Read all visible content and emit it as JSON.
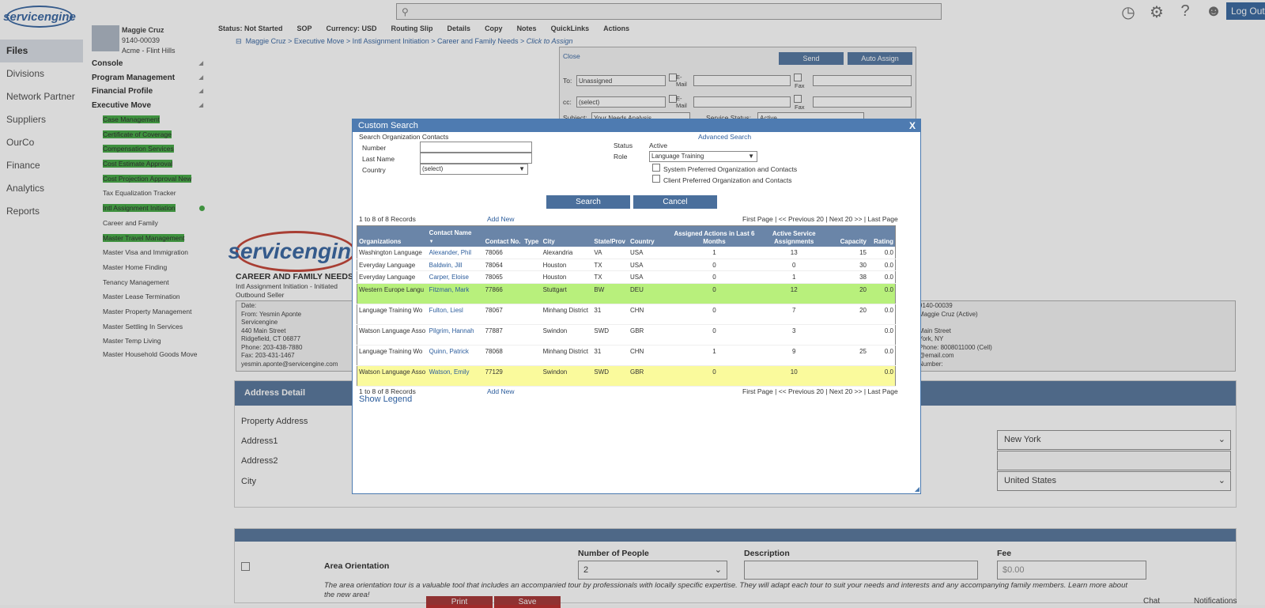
{
  "top": {
    "logo": "servicengine",
    "logout": "Log Out",
    "icons": [
      "history-icon",
      "gear-icon",
      "help-icon",
      "user-group-icon"
    ]
  },
  "left_nav": [
    "Files",
    "Divisions",
    "Network Partner",
    "Suppliers",
    "OurCo",
    "Finance",
    "Analytics",
    "Reports"
  ],
  "profile": {
    "name": "Maggie Cruz",
    "id": "9140-00039",
    "company": "Acme - Flint Hills"
  },
  "sections": [
    "Console",
    "Program Management",
    "Financial Profile",
    "Executive Move"
  ],
  "menu_items": [
    {
      "label": "Case Management",
      "hl": true
    },
    {
      "label": "Certificate of Coverage",
      "hl": true
    },
    {
      "label": "Compensation Services",
      "hl": true
    },
    {
      "label": "Cost Estimate Approval",
      "hl": true
    },
    {
      "label": "Cost Projection Approval New",
      "hl": true
    },
    {
      "label": "Tax Equalization Tracker",
      "hl": false
    },
    {
      "label": "Intl Assignment Initiation",
      "hl": true
    },
    {
      "label": "Career and Family",
      "hl": false
    },
    {
      "label": "Master Travel Management",
      "hl": true
    },
    {
      "label": "Master Visa and Immigration",
      "hl": false
    },
    {
      "label": "Master Home Finding",
      "hl": false
    },
    {
      "label": "Tenancy Management",
      "hl": false
    },
    {
      "label": "Master Lease Termination",
      "hl": false
    },
    {
      "label": "Master Property Management",
      "hl": false
    },
    {
      "label": "Master Settling In Services",
      "hl": false
    },
    {
      "label": "Master Temp Living",
      "hl": false
    },
    {
      "label": "Master Household Goods Move",
      "hl": false
    }
  ],
  "status_row": {
    "status": "Status: Not Started",
    "sop": "SOP",
    "currency": "Currency: USD",
    "routing": "Routing Slip",
    "details": "Details",
    "copy": "Copy",
    "notes": "Notes",
    "quicklinks": "QuickLinks",
    "actions": "Actions"
  },
  "breadcrumb": {
    "minus": "⊟",
    "c1": "Maggie Cruz",
    "c2": "Executive Move",
    "c3": "Intl Assignment Initiation",
    "c4": "Career and Family Needs",
    "c5": "Click to Assign"
  },
  "compose": {
    "close": "Close",
    "send": "Send",
    "auto_assign": "Auto Assign",
    "to": "To:",
    "to_value": "Unassigned",
    "cc": "cc:",
    "cc_value": "(select)",
    "email": "E-Mail",
    "fax": "Fax",
    "subject": "Subject:",
    "subject_value": "Your Needs Analysis",
    "service_status": "Service Status:",
    "service_status_value": "Active"
  },
  "background": {
    "logo": "servicengine",
    "title": "CAREER AND FAMILY NEEDS",
    "sub1": "Intl Assignment Initiation - Initiated",
    "sub2": "Outbound Seller",
    "left_box": [
      "Date:",
      "From: Yesmin Aponte",
      "Servicengine",
      "440 Main Street",
      "Ridgefield, CT 06877",
      "Phone: 203-438-7880",
      "Fax: 203-431-1467",
      "yesmin.aponte@servicengine.com"
    ],
    "right_box": [
      "9140-00039",
      "Maggie Cruz (Active)",
      "",
      "Main Street",
      "York, NY",
      "Phone: 8008011000 (Cell)",
      "@email.com",
      "Number:"
    ],
    "address_header": "Address Detail",
    "address_labels": [
      "Property Address",
      "Address1",
      "Address2",
      "City"
    ],
    "state_value": "New York",
    "country_value": "United States",
    "orient_title": "Area Orientation",
    "num_people_label": "Number of People",
    "num_people_value": "2",
    "desc_label": "Description",
    "fee_label": "Fee",
    "fee_value": "$0.00",
    "orient_desc": "The area orientation tour is a valuable tool that includes an accompanied tour by professionals with locally specific expertise. They will adapt each tour to suit your needs and interests and any accompanying family members. Learn more about the new area!",
    "print": "Print",
    "save": "Save",
    "chat": "Chat",
    "notifications": "Notifications"
  },
  "modal": {
    "title": "Custom Search",
    "close": "X",
    "subtitle": "Search Organization Contacts",
    "advanced": "Advanced Search",
    "number_label": "Number",
    "lastname_label": "Last Name",
    "country_label": "Country",
    "country_value": "(select)",
    "status_label": "Status",
    "status_value": "Active",
    "role_label": "Role",
    "role_value": "Language Training",
    "chk1": "System Preferred Organization and Contacts",
    "chk2": "Client Preferred Organization and Contacts",
    "search": "Search",
    "cancel": "Cancel",
    "records": "1 to 8 of 8 Records",
    "add_new": "Add New",
    "first_page": "First Page",
    "prev": "<< Previous 20",
    "next": "Next 20 >>",
    "last_page": "Last Page",
    "sep": "|",
    "show_legend": "Show Legend",
    "columns": [
      "Organizations",
      "Contact Name",
      "Contact No.",
      "Type",
      "City",
      "State/Prov",
      "Country",
      "Assigned Actions in Last 6 Months",
      "Active Service Assignments",
      "Capacity",
      "Rating"
    ],
    "sort_marker": "▼",
    "rows": [
      {
        "org": "Washington Language",
        "contact": "Alexander, Phil",
        "no": "78066",
        "type": "",
        "city": "Alexandria",
        "state": "VA",
        "country": "USA",
        "assigned": "1",
        "active": "13",
        "capacity": "15",
        "rating": "0.0",
        "style": ""
      },
      {
        "org": "Everyday Language",
        "contact": "Baldwin, Jill",
        "no": "78064",
        "type": "",
        "city": "Houston",
        "state": "TX",
        "country": "USA",
        "assigned": "0",
        "active": "0",
        "capacity": "30",
        "rating": "0.0",
        "style": ""
      },
      {
        "org": "Everyday Language",
        "contact": "Carper, Eloise",
        "no": "78065",
        "type": "",
        "city": "Houston",
        "state": "TX",
        "country": "USA",
        "assigned": "0",
        "active": "1",
        "capacity": "38",
        "rating": "0.0",
        "style": ""
      },
      {
        "org": "Western Europe Langu",
        "contact": "Fitzman, Mark",
        "no": "77866",
        "type": "",
        "city": "Stuttgart",
        "state": "BW",
        "country": "DEU",
        "assigned": "0",
        "active": "12",
        "capacity": "20",
        "rating": "0.0",
        "style": "green"
      },
      {
        "org": "Language Training Wo",
        "contact": "Fulton, Liesl",
        "no": "78067",
        "type": "",
        "city": "Minhang District",
        "state": "31",
        "country": "CHN",
        "assigned": "0",
        "active": "7",
        "capacity": "20",
        "rating": "0.0",
        "style": ""
      },
      {
        "org": "Watson Language Asso",
        "contact": "Pilgrim, Hannah",
        "no": "77887",
        "type": "",
        "city": "Swindon",
        "state": "SWD",
        "country": "GBR",
        "assigned": "0",
        "active": "3",
        "capacity": "",
        "rating": "0.0",
        "style": ""
      },
      {
        "org": "Language Training Wo",
        "contact": "Quinn, Patrick",
        "no": "78068",
        "type": "",
        "city": "Minhang District",
        "state": "31",
        "country": "CHN",
        "assigned": "1",
        "active": "9",
        "capacity": "25",
        "rating": "0.0",
        "style": ""
      },
      {
        "org": "Watson Language Asso",
        "contact": "Watson, Emily",
        "no": "77129",
        "type": "",
        "city": "Swindon",
        "state": "SWD",
        "country": "GBR",
        "assigned": "0",
        "active": "10",
        "capacity": "",
        "rating": "0.0",
        "style": "yellow"
      }
    ]
  }
}
